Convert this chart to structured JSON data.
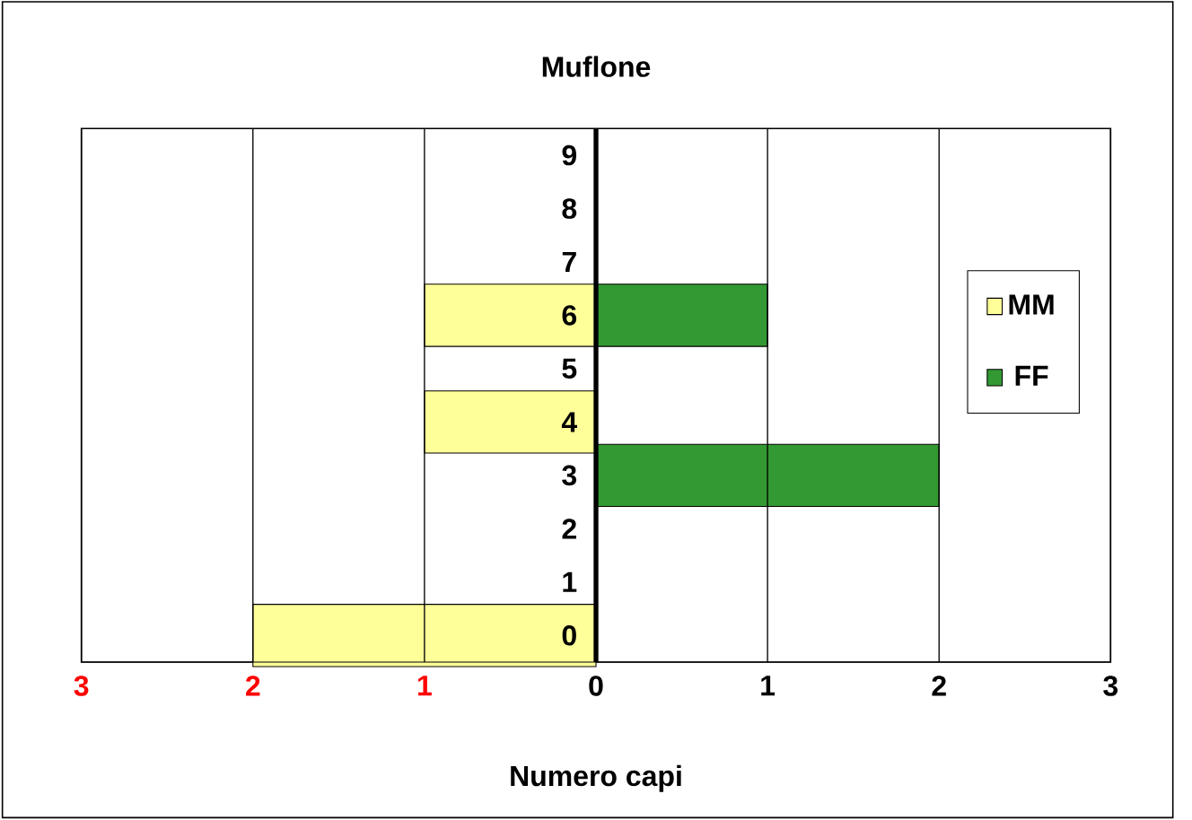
{
  "chart_data": {
    "type": "bar",
    "orientation": "horizontal",
    "title": "Muflone",
    "xlabel": "Numero capi",
    "categories": [
      "9",
      "8",
      "7",
      "6",
      "5",
      "4",
      "3",
      "2",
      "1",
      "0"
    ],
    "series": [
      {
        "name": "MM",
        "color": "#ffff99",
        "values": [
          null,
          null,
          null,
          -1,
          null,
          -1,
          null,
          null,
          null,
          -2
        ]
      },
      {
        "name": "FF",
        "color": "#339933",
        "values": [
          null,
          null,
          null,
          1,
          null,
          null,
          2,
          null,
          null,
          null
        ]
      }
    ],
    "xlim": [
      -3,
      3
    ],
    "xticks": [
      {
        "value": -3,
        "label": "3"
      },
      {
        "value": -2,
        "label": "2"
      },
      {
        "value": -1,
        "label": "1"
      },
      0,
      1,
      2,
      3
    ],
    "grid": "x",
    "legend": "right"
  }
}
